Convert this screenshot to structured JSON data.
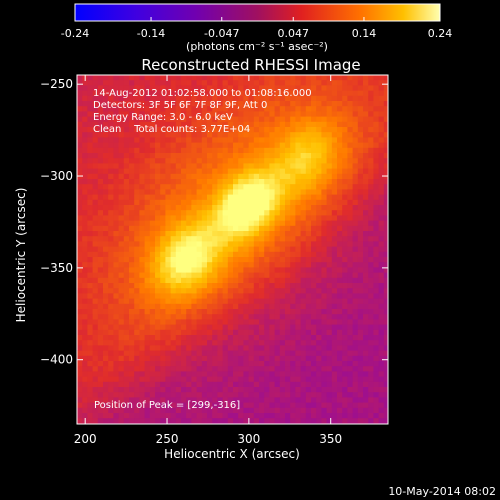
{
  "colorbar": {
    "ticks": [
      "-0.24",
      "-0.14",
      "-0.047",
      "0.047",
      "0.14",
      "0.24"
    ],
    "range": [
      -0.24,
      0.24
    ],
    "unit_label": "(photons cm⁻² s⁻¹ asec⁻²)"
  },
  "plot": {
    "title": "Reconstructed RHESSI Image",
    "info_lines": [
      "14-Aug-2012 01:02:58.000 to 01:08:16.000",
      "Detectors: 3F 5F 6F 7F 8F 9F, Att 0",
      "Energy Range: 3.0 - 6.0 keV",
      "Clean    Total counts: 3.77E+04"
    ],
    "peak_text": "Position of Peak = [299,-316]",
    "footer_date": "10-May-2014 08:02"
  },
  "chart_data": {
    "type": "heatmap",
    "title": "Reconstructed RHESSI Image",
    "xlabel": "Heliocentric X (arcsec)",
    "ylabel": "Heliocentric Y (arcsec)",
    "xlim": [
      195,
      385
    ],
    "ylim": [
      -435,
      -245
    ],
    "x_ticks": [
      200,
      250,
      300,
      350
    ],
    "y_ticks": [
      -250,
      -300,
      -350,
      -400
    ],
    "peak": [
      299,
      -316
    ],
    "sources": [
      {
        "x": 299,
        "y": -316,
        "amp": 0.24
      },
      {
        "x": 262,
        "y": -345,
        "amp": 0.19
      },
      {
        "x": 335,
        "y": -290,
        "amp": 0.12
      }
    ],
    "colormap": [
      "#0000ff",
      "#5a00c8",
      "#a0108c",
      "#e02c2c",
      "#ff7a00",
      "#ffc000",
      "#ffff80"
    ]
  }
}
